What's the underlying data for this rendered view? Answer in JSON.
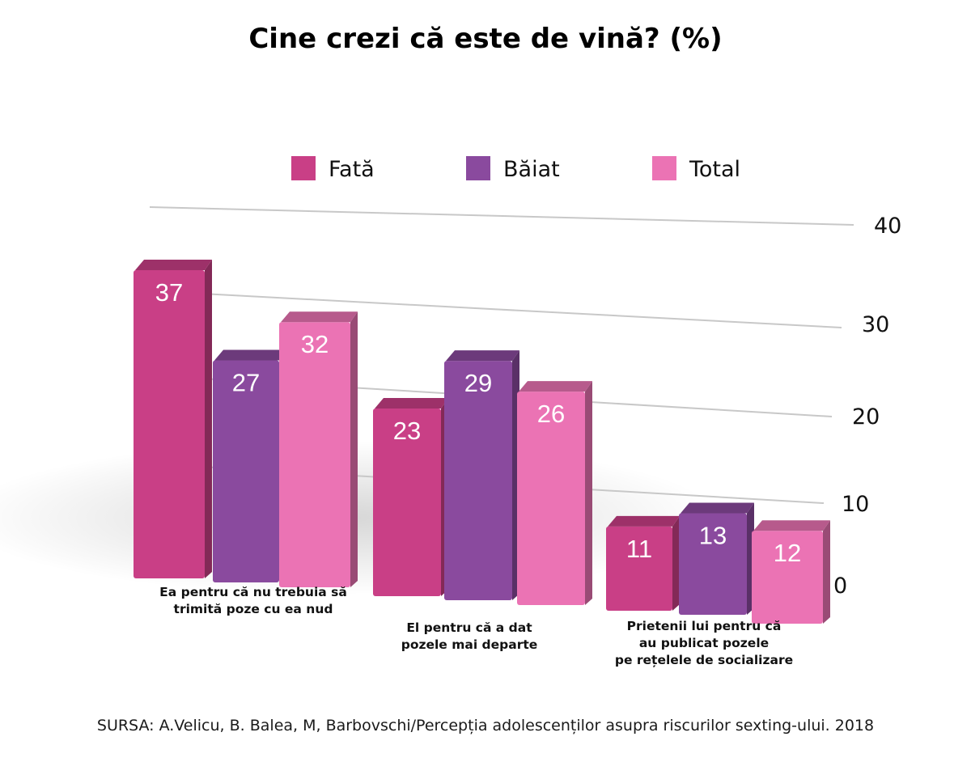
{
  "chart_data": {
    "type": "bar",
    "title": "Cine crezi că este de vină? (%)",
    "source": "SURSA: A.Velicu, B. Balea, M, Barbovschi/Percepția adolescenților asupra riscurilor sexting-ului. 2018",
    "ylim": [
      0,
      40
    ],
    "yticks": [
      "0",
      "10",
      "20",
      "30",
      "40"
    ],
    "grid": true,
    "legend_position": "top",
    "categories": [
      [
        "Ea pentru că nu trebuia să",
        "trimită poze cu ea nud"
      ],
      [
        "El pentru că a dat",
        "pozele mai departe"
      ],
      [
        "Prietenii lui pentru că",
        "au publicat pozele",
        "pe rețelele de socializare"
      ]
    ],
    "series": [
      {
        "name": "Fată",
        "color": "#c93f86",
        "values": [
          37,
          23,
          11
        ]
      },
      {
        "name": "Băiat",
        "color": "#8a4a9e",
        "values": [
          27,
          29,
          13
        ]
      },
      {
        "name": "Total",
        "color": "#eb73b4",
        "values": [
          32,
          26,
          12
        ]
      }
    ]
  }
}
